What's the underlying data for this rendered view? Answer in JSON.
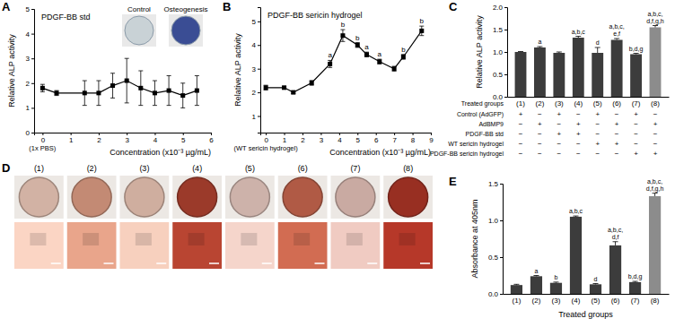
{
  "chart_data": [
    {
      "panel": "A",
      "type": "line",
      "title": "PDGF-BB std",
      "xlabel": "Concentration (x10⁻³ µg/mL)",
      "ylabel": "Relative ALP activity",
      "baseline_label": "(1x PBS)",
      "inset_labels": [
        "Control",
        "Osteogenesis"
      ],
      "x": [
        0,
        0.5,
        1.5,
        2,
        2.5,
        3,
        3.5,
        4,
        4.5,
        5,
        5.5
      ],
      "series": [
        {
          "color": "#000000",
          "marker": "square",
          "values": [
            1.8,
            1.6,
            1.6,
            1.6,
            1.9,
            2.1,
            1.8,
            1.6,
            1.7,
            1.5,
            1.7
          ],
          "errors": [
            0.15,
            0.1,
            0.5,
            0.5,
            0.5,
            0.9,
            0.7,
            0.5,
            0.6,
            0.5,
            0.6
          ]
        }
      ],
      "xlim": [
        -0.3,
        6
      ],
      "xticks": [
        0,
        1,
        2,
        3,
        4,
        5,
        6
      ],
      "ylim": [
        0,
        5
      ],
      "yticks": [
        0,
        1,
        2,
        3,
        4,
        5
      ]
    },
    {
      "panel": "B",
      "type": "line",
      "title": "PDGF-BB sericin hydrogel",
      "xlabel": "Concentration (x10⁻³ µg/mL)",
      "ylabel": "Relative ALP activity",
      "baseline_label": "(WT sericin hydrogel)",
      "x": [
        0,
        1,
        1.5,
        2.5,
        3.5,
        4.2,
        5,
        5.5,
        6.2,
        7,
        7.5,
        8.5
      ],
      "series": [
        {
          "color": "#000000",
          "marker": "square",
          "values": [
            2.2,
            2.2,
            2.0,
            2.4,
            3.2,
            4.4,
            4.0,
            3.6,
            3.3,
            3.0,
            3.5,
            4.6
          ],
          "errors": [
            0.1,
            0.05,
            0.05,
            0.1,
            0.15,
            0.25,
            0.1,
            0.1,
            0.1,
            0.1,
            0.1,
            0.2
          ],
          "point_labels": [
            null,
            null,
            null,
            null,
            "a",
            "b",
            "b",
            "a",
            "a",
            null,
            "b",
            "b"
          ]
        }
      ],
      "xlim": [
        -0.3,
        9
      ],
      "xticks": [
        0,
        1,
        2,
        3,
        4,
        5,
        6,
        7,
        8,
        9
      ],
      "ylim": [
        0.3,
        5.6
      ],
      "yticks": [
        1,
        2,
        3,
        4,
        5
      ]
    },
    {
      "panel": "C",
      "type": "bar",
      "ylabel": "Relative ALP activity",
      "xlabel": "Treated groups",
      "categories": [
        "(1)",
        "(2)",
        "(3)",
        "(4)",
        "(5)",
        "(6)",
        "(7)",
        "(8)"
      ],
      "values": [
        1.0,
        1.1,
        0.98,
        1.32,
        0.98,
        1.27,
        0.95,
        1.55
      ],
      "errors": [
        0.01,
        0.02,
        0.02,
        0.03,
        0.12,
        0.03,
        0.02,
        0.04
      ],
      "colors": [
        "#3c3c3c",
        "#3c3c3c",
        "#3c3c3c",
        "#3c3c3c",
        "#3c3c3c",
        "#3c3c3c",
        "#3c3c3c",
        "#8c8c8c"
      ],
      "significance": [
        null,
        [
          "a"
        ],
        null,
        [
          "a,b,c"
        ],
        [
          "d"
        ],
        [
          "a,b,c,",
          "e,f"
        ],
        [
          "b,d,g"
        ],
        [
          "a,b,c,",
          "d,f,g,h"
        ]
      ],
      "ylim": [
        0,
        2
      ],
      "yticks": [
        {
          "value": 0,
          "label": "0.0"
        },
        0.5,
        {
          "value": 1,
          "label": "1.0"
        },
        1.5,
        {
          "value": 2,
          "label": "2.0"
        }
      ],
      "table": {
        "row_labels": [
          "Control (AdGFP)",
          "AdBMP9",
          "PDGF-BB std",
          "WT sericin hydrogel",
          "PDGF-BB sericin hydrogel"
        ],
        "rows": [
          [
            "+",
            "−",
            "+",
            "−",
            "+",
            "−",
            "+",
            "−"
          ],
          [
            "−",
            "+",
            "−",
            "+",
            "−",
            "+",
            "−",
            "+"
          ],
          [
            "−",
            "−",
            "+",
            "+",
            "−",
            "−",
            "−",
            "−"
          ],
          [
            "−",
            "−",
            "−",
            "−",
            "+",
            "+",
            "−",
            "−"
          ],
          [
            "−",
            "−",
            "−",
            "−",
            "−",
            "−",
            "+",
            "+"
          ]
        ]
      }
    },
    {
      "panel": "D",
      "type": "image_grid",
      "categories": [
        "(1)",
        "(2)",
        "(3)",
        "(4)",
        "(5)",
        "(6)",
        "(7)",
        "(8)"
      ],
      "colors": [
        "#d2b2a4",
        "#c38a74",
        "#cfae9f",
        "#9b3a2a",
        "#cdb2aa",
        "#b05a45",
        "#c9aaa2",
        "#982f22"
      ]
    },
    {
      "panel": "E",
      "type": "bar",
      "ylabel": "Absorbance at 405nm",
      "xlabel": "Treated groups",
      "categories": [
        "(1)",
        "(2)",
        "(3)",
        "(4)",
        "(5)",
        "(6)",
        "(7)",
        "(8)"
      ],
      "values": [
        0.12,
        0.24,
        0.15,
        1.05,
        0.13,
        0.66,
        0.16,
        1.33
      ],
      "errors": [
        0.01,
        0.01,
        0.01,
        0.01,
        0.01,
        0.05,
        0.01,
        0.04
      ],
      "colors": [
        "#3c3c3c",
        "#3c3c3c",
        "#3c3c3c",
        "#3c3c3c",
        "#3c3c3c",
        "#3c3c3c",
        "#3c3c3c",
        "#8c8c8c"
      ],
      "significance": [
        null,
        [
          "a"
        ],
        [
          "b"
        ],
        [
          "a,b,c"
        ],
        [
          "d"
        ],
        [
          "a,b,c,",
          "d,f"
        ],
        [
          "b,d,g"
        ],
        [
          "a,b,c,",
          "d,f,g,h"
        ]
      ],
      "ylim": [
        0,
        1.5
      ],
      "yticks": [
        {
          "value": 0,
          "label": "0.0"
        },
        0.5,
        {
          "value": 1,
          "label": "1.0"
        },
        1.5
      ]
    }
  ]
}
